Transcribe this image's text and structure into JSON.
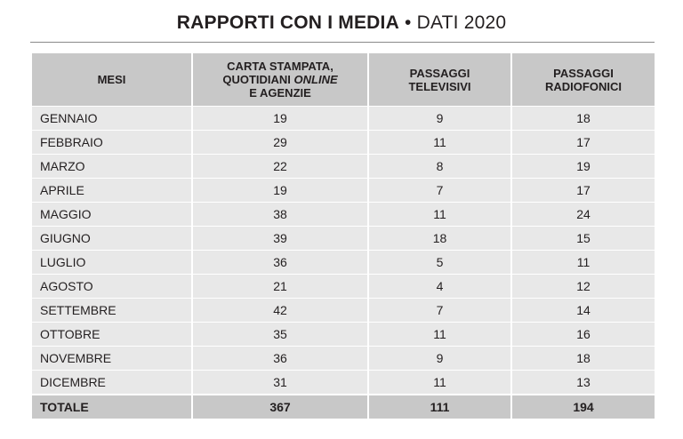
{
  "title": {
    "main": "RAPPORTI CON I MEDIA",
    "separator": " • ",
    "sub": "DATI 2020"
  },
  "table": {
    "headers": {
      "col1": "MESI",
      "col2_line1": "CARTA STAMPATA,",
      "col2_line2a": "QUOTIDIANI ",
      "col2_line2b": "ONLINE",
      "col2_line3": "E AGENZIE",
      "col3_line1": "PASSAGGI",
      "col3_line2": "TELEVISIVI",
      "col4_line1": "PASSAGGI",
      "col4_line2": "RADIOFONICI"
    },
    "rows": [
      {
        "month": "GENNAIO",
        "print": "19",
        "tv": "9",
        "radio": "18"
      },
      {
        "month": "FEBBRAIO",
        "print": "29",
        "tv": "11",
        "radio": "17"
      },
      {
        "month": "MARZO",
        "print": "22",
        "tv": "8",
        "radio": "19"
      },
      {
        "month": "APRILE",
        "print": "19",
        "tv": "7",
        "radio": "17"
      },
      {
        "month": "MAGGIO",
        "print": "38",
        "tv": "11",
        "radio": "24"
      },
      {
        "month": "GIUGNO",
        "print": "39",
        "tv": "18",
        "radio": "15"
      },
      {
        "month": "LUGLIO",
        "print": "36",
        "tv": "5",
        "radio": "11"
      },
      {
        "month": "AGOSTO",
        "print": "21",
        "tv": "4",
        "radio": "12"
      },
      {
        "month": "SETTEMBRE",
        "print": "42",
        "tv": "7",
        "radio": "14"
      },
      {
        "month": "OTTOBRE",
        "print": "35",
        "tv": "11",
        "radio": "16"
      },
      {
        "month": "NOVEMBRE",
        "print": "36",
        "tv": "9",
        "radio": "18"
      },
      {
        "month": "DICEMBRE",
        "print": "31",
        "tv": "11",
        "radio": "13"
      }
    ],
    "total": {
      "label": "TOTALE",
      "print": "367",
      "tv": "111",
      "radio": "194"
    }
  },
  "colors": {
    "header_bg": "#c8c8c8",
    "row_bg": "#e8e8e8",
    "text": "#231f20"
  }
}
